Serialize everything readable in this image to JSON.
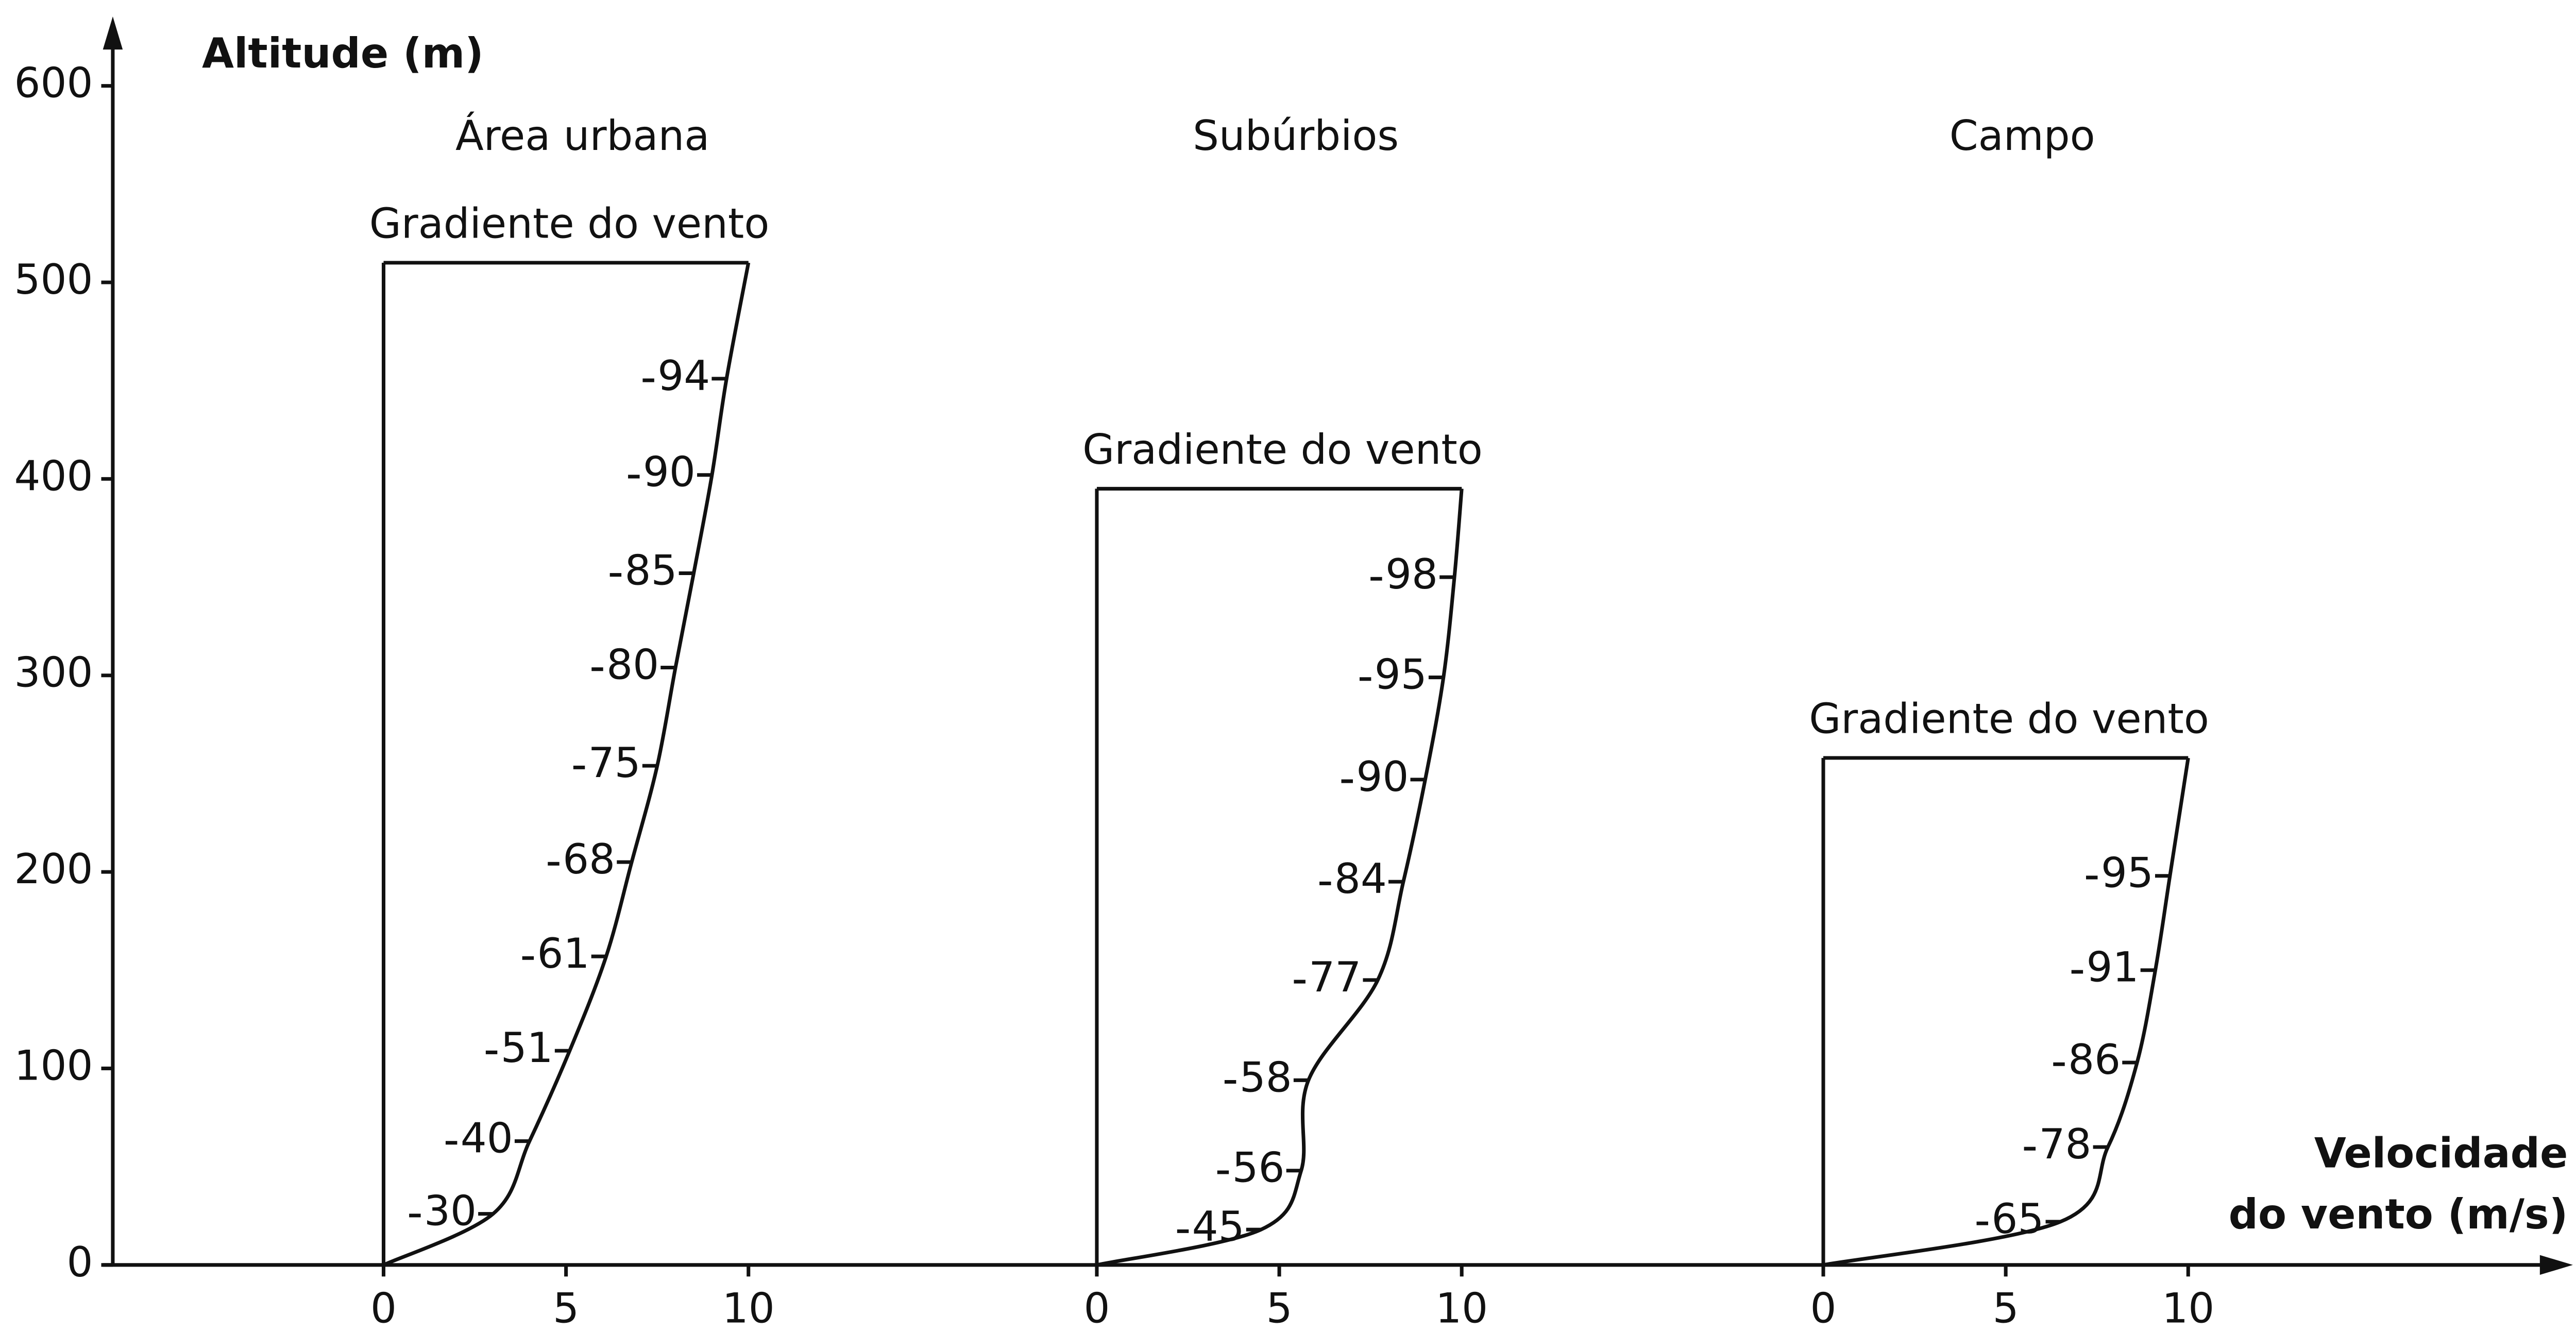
{
  "chart_data": {
    "type": "line",
    "y_label": "Altitude (m)",
    "x_label": [
      "Velocidade",
      "do vento (m/s)"
    ],
    "ylim": [
      0,
      600
    ],
    "yticks": [
      0,
      100,
      200,
      300,
      400,
      500,
      600
    ],
    "panels": [
      {
        "title": "Área urbana",
        "gradient_label": "Gradiente do vento",
        "gradient_height": 510,
        "xlim": [
          0,
          10
        ],
        "xticks": [
          0,
          5,
          10
        ],
        "altitudes": [
          451,
          402,
          352,
          304,
          254,
          205,
          157,
          109,
          63,
          26
        ],
        "percents": [
          94,
          90,
          85,
          80,
          75,
          68,
          61,
          51,
          40,
          30
        ]
      },
      {
        "title": "Subúrbios",
        "gradient_label": "Gradiente do vento",
        "gradient_height": 395,
        "xlim": [
          0,
          10
        ],
        "xticks": [
          0,
          5,
          10
        ],
        "altitudes": [
          350,
          299,
          247,
          195,
          145,
          94,
          48,
          18
        ],
        "percents": [
          98,
          95,
          90,
          84,
          77,
          58,
          56,
          45
        ]
      },
      {
        "title": "Campo",
        "gradient_label": "Gradiente do vento",
        "gradient_height": 258,
        "xlim": [
          0,
          10
        ],
        "xticks": [
          0,
          5,
          10
        ],
        "altitudes": [
          198,
          150,
          103,
          60,
          22
        ],
        "percents": [
          95,
          91,
          86,
          78,
          65
        ]
      }
    ]
  }
}
